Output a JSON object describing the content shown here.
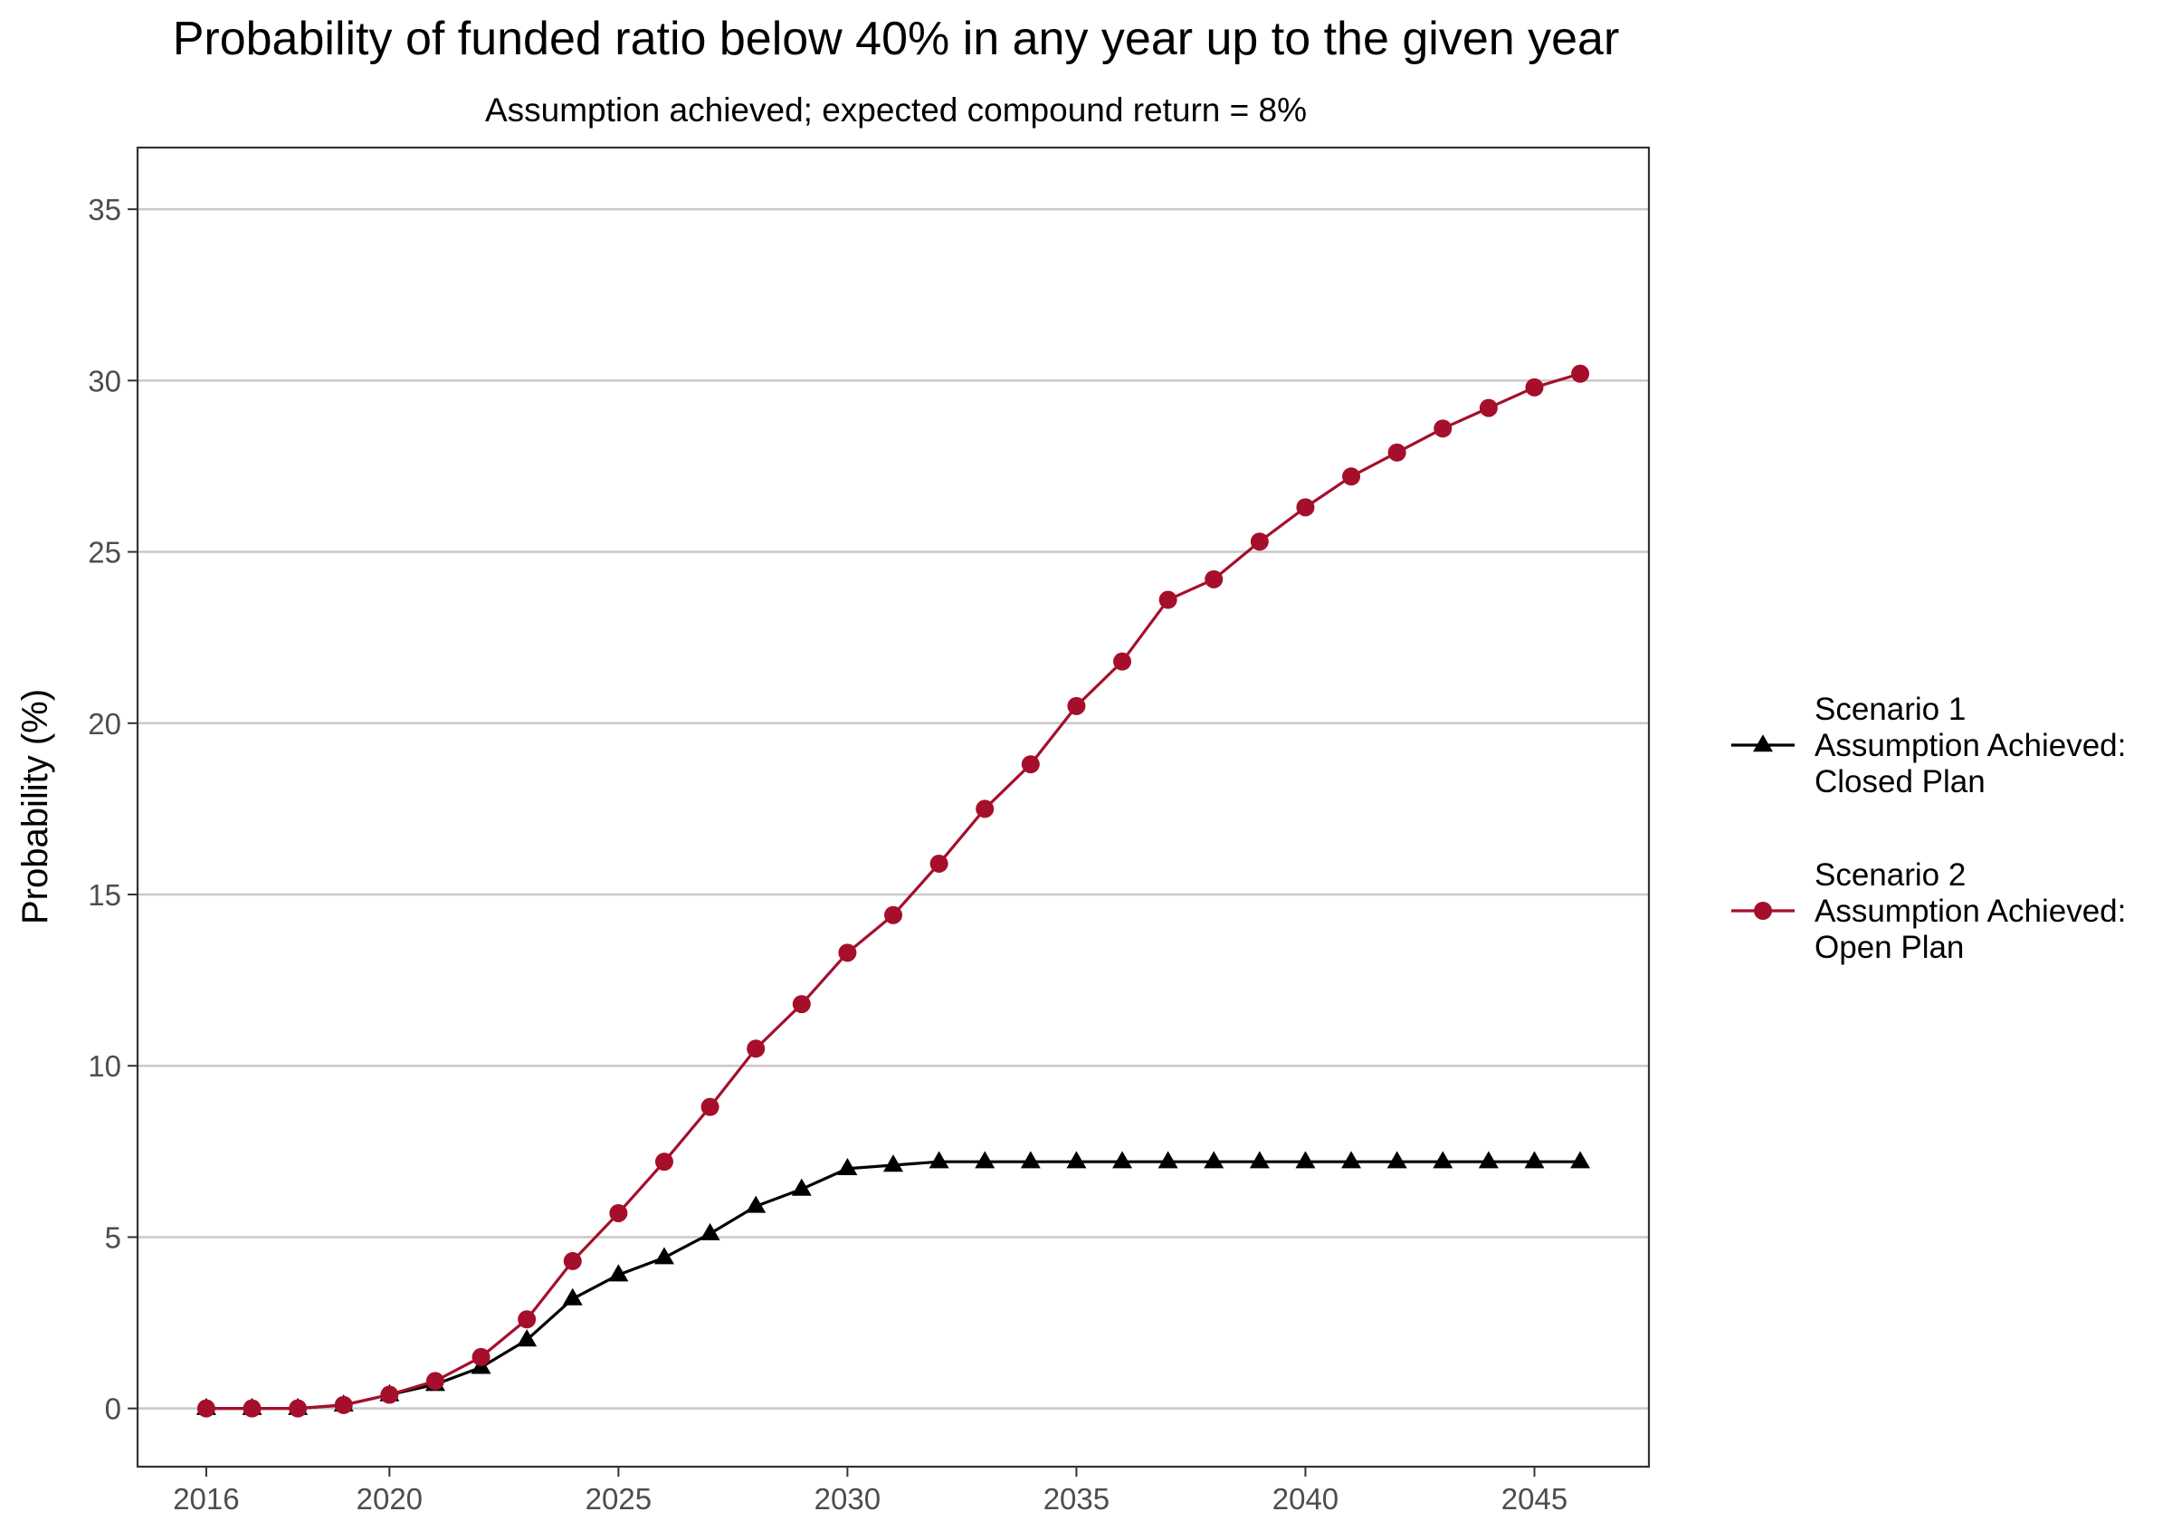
{
  "chart_data": {
    "type": "line",
    "title": "Probability of funded ratio below 40% in any year up to the given year",
    "subtitle": "Assumption achieved; expected compound return = 8%",
    "xlabel": "",
    "ylabel": "Probability (%)",
    "xlim": [
      2014.5,
      2047.5
    ],
    "ylim": [
      -1.7,
      36.8
    ],
    "x_ticks": [
      2016,
      2020,
      2025,
      2030,
      2035,
      2040,
      2045
    ],
    "y_ticks": [
      0,
      5,
      10,
      15,
      20,
      25,
      30,
      35
    ],
    "grid": "horizontal major lines",
    "legend_position": "right",
    "x": [
      2016,
      2017,
      2018,
      2019,
      2020,
      2021,
      2022,
      2023,
      2024,
      2025,
      2026,
      2027,
      2028,
      2029,
      2030,
      2031,
      2032,
      2033,
      2034,
      2035,
      2036,
      2037,
      2038,
      2039,
      2040,
      2041,
      2042,
      2043,
      2044,
      2045,
      2046
    ],
    "series": [
      {
        "name_lines": [
          "Scenario 1",
          "Assumption Achieved:",
          "Closed Plan"
        ],
        "color": "#000000",
        "marker": "triangle",
        "values": [
          0,
          0,
          0,
          0.1,
          0.4,
          0.7,
          1.2,
          2.0,
          3.2,
          3.9,
          4.4,
          5.1,
          5.9,
          6.4,
          7.0,
          7.1,
          7.2,
          7.2,
          7.2,
          7.2,
          7.2,
          7.2,
          7.2,
          7.2,
          7.2,
          7.2,
          7.2,
          7.2,
          7.2,
          7.2,
          7.2
        ]
      },
      {
        "name_lines": [
          "Scenario 2",
          "Assumption Achieved:",
          "Open Plan"
        ],
        "color": "#a50f2c",
        "marker": "circle",
        "values": [
          0,
          0,
          0,
          0.1,
          0.4,
          0.8,
          1.5,
          2.6,
          4.3,
          5.7,
          7.2,
          8.8,
          10.5,
          11.8,
          13.3,
          14.4,
          15.9,
          17.5,
          18.8,
          20.5,
          21.8,
          23.6,
          24.2,
          25.3,
          26.3,
          27.2,
          27.9,
          28.6,
          29.2,
          29.8,
          30.2
        ]
      }
    ]
  }
}
